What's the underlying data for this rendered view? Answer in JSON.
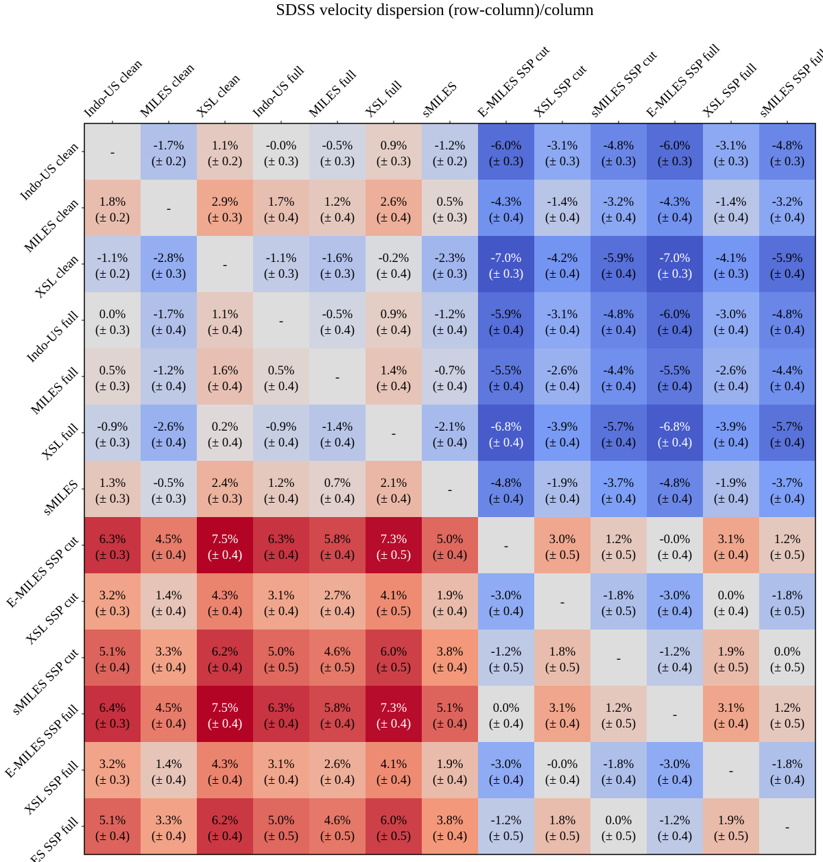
{
  "chart_data": {
    "type": "heatmap",
    "title": "SDSS velocity dispersion (row-column)/column",
    "columns": [
      "Indo-US clean",
      "MILES clean",
      "XSL clean",
      "Indo-US full",
      "MILES full",
      "XSL full",
      "sMILES",
      "E-MILES SSP cut",
      "XSL SSP cut",
      "sMILES SSP cut",
      "E-MILES SSP full",
      "XSL SSP full",
      "sMILES SSP full"
    ],
    "rows": [
      "Indo-US clean",
      "MILES clean",
      "XSL clean",
      "Indo-US full",
      "MILES full",
      "XSL full",
      "sMILES",
      "E-MILES SSP cut",
      "XSL SSP cut",
      "sMILES SSP cut",
      "E-MILES SSP full",
      "XSL SSP full",
      "sMILES SSP full"
    ],
    "value_unit": "%",
    "color_range": [
      -7.5,
      7.5
    ],
    "colormap": "coolwarm",
    "diagonal_label": "-",
    "values": [
      [
        null,
        -1.7,
        1.1,
        -0.0,
        -0.5,
        0.9,
        -1.2,
        -6.0,
        -3.1,
        -4.8,
        -6.0,
        -3.1,
        -4.8
      ],
      [
        1.8,
        null,
        2.9,
        1.7,
        1.2,
        2.6,
        0.5,
        -4.3,
        -1.4,
        -3.2,
        -4.3,
        -1.4,
        -3.2
      ],
      [
        -1.1,
        -2.8,
        null,
        -1.1,
        -1.6,
        -0.2,
        -2.3,
        -7.0,
        -4.2,
        -5.9,
        -7.0,
        -4.1,
        -5.9
      ],
      [
        0.0,
        -1.7,
        1.1,
        null,
        -0.5,
        0.9,
        -1.2,
        -5.9,
        -3.1,
        -4.8,
        -6.0,
        -3.0,
        -4.8
      ],
      [
        0.5,
        -1.2,
        1.6,
        0.5,
        null,
        1.4,
        -0.7,
        -5.5,
        -2.6,
        -4.4,
        -5.5,
        -2.6,
        -4.4
      ],
      [
        -0.9,
        -2.6,
        0.2,
        -0.9,
        -1.4,
        null,
        -2.1,
        -6.8,
        -3.9,
        -5.7,
        -6.8,
        -3.9,
        -5.7
      ],
      [
        1.3,
        -0.5,
        2.4,
        1.2,
        0.7,
        2.1,
        null,
        -4.8,
        -1.9,
        -3.7,
        -4.8,
        -1.9,
        -3.7
      ],
      [
        6.3,
        4.5,
        7.5,
        6.3,
        5.8,
        7.3,
        5.0,
        null,
        3.0,
        1.2,
        -0.0,
        3.1,
        1.2
      ],
      [
        3.2,
        1.4,
        4.3,
        3.1,
        2.7,
        4.1,
        1.9,
        -3.0,
        null,
        -1.8,
        -3.0,
        0.0,
        -1.8
      ],
      [
        5.1,
        3.3,
        6.2,
        5.0,
        4.6,
        6.0,
        3.8,
        -1.2,
        1.8,
        null,
        -1.2,
        1.9,
        0.0
      ],
      [
        6.4,
        4.5,
        7.5,
        6.3,
        5.8,
        7.3,
        5.1,
        0.0,
        3.1,
        1.2,
        null,
        3.1,
        1.2
      ],
      [
        3.2,
        1.4,
        4.3,
        3.1,
        2.6,
        4.1,
        1.9,
        -3.0,
        -0.0,
        -1.8,
        -3.0,
        null,
        -1.8
      ],
      [
        5.1,
        3.3,
        6.2,
        5.0,
        4.6,
        6.0,
        3.8,
        -1.2,
        1.8,
        0.0,
        -1.2,
        1.9,
        null
      ]
    ],
    "errors": [
      [
        null,
        0.2,
        0.2,
        0.3,
        0.3,
        0.3,
        0.2,
        0.3,
        0.3,
        0.3,
        0.3,
        0.3,
        0.3
      ],
      [
        0.2,
        null,
        0.3,
        0.4,
        0.4,
        0.4,
        0.3,
        0.4,
        0.4,
        0.4,
        0.4,
        0.4,
        0.4
      ],
      [
        0.2,
        0.3,
        null,
        0.3,
        0.3,
        0.4,
        0.3,
        0.3,
        0.4,
        0.4,
        0.3,
        0.3,
        0.4
      ],
      [
        0.3,
        0.4,
        0.4,
        null,
        0.4,
        0.4,
        0.4,
        0.4,
        0.4,
        0.4,
        0.4,
        0.4,
        0.4
      ],
      [
        0.3,
        0.4,
        0.4,
        0.4,
        null,
        0.4,
        0.4,
        0.4,
        0.4,
        0.4,
        0.4,
        0.4,
        0.4
      ],
      [
        0.3,
        0.4,
        0.4,
        0.4,
        0.4,
        null,
        0.4,
        0.4,
        0.4,
        0.4,
        0.4,
        0.4,
        0.4
      ],
      [
        0.3,
        0.3,
        0.3,
        0.4,
        0.4,
        0.4,
        null,
        0.4,
        0.4,
        0.4,
        0.4,
        0.4,
        0.4
      ],
      [
        0.3,
        0.4,
        0.4,
        0.4,
        0.4,
        0.5,
        0.4,
        null,
        0.5,
        0.5,
        0.4,
        0.4,
        0.5
      ],
      [
        0.3,
        0.4,
        0.4,
        0.4,
        0.4,
        0.5,
        0.4,
        0.4,
        null,
        0.5,
        0.4,
        0.4,
        0.5
      ],
      [
        0.4,
        0.4,
        0.4,
        0.5,
        0.5,
        0.5,
        0.4,
        0.5,
        0.5,
        null,
        0.4,
        0.5,
        0.5
      ],
      [
        0.3,
        0.4,
        0.4,
        0.4,
        0.4,
        0.4,
        0.4,
        0.4,
        0.4,
        0.5,
        null,
        0.4,
        0.5
      ],
      [
        0.3,
        0.4,
        0.4,
        0.4,
        0.4,
        0.4,
        0.4,
        0.4,
        0.4,
        0.4,
        0.4,
        null,
        0.4
      ],
      [
        0.4,
        0.4,
        0.4,
        0.5,
        0.5,
        0.5,
        0.4,
        0.5,
        0.5,
        0.5,
        0.4,
        0.5,
        null
      ]
    ]
  }
}
